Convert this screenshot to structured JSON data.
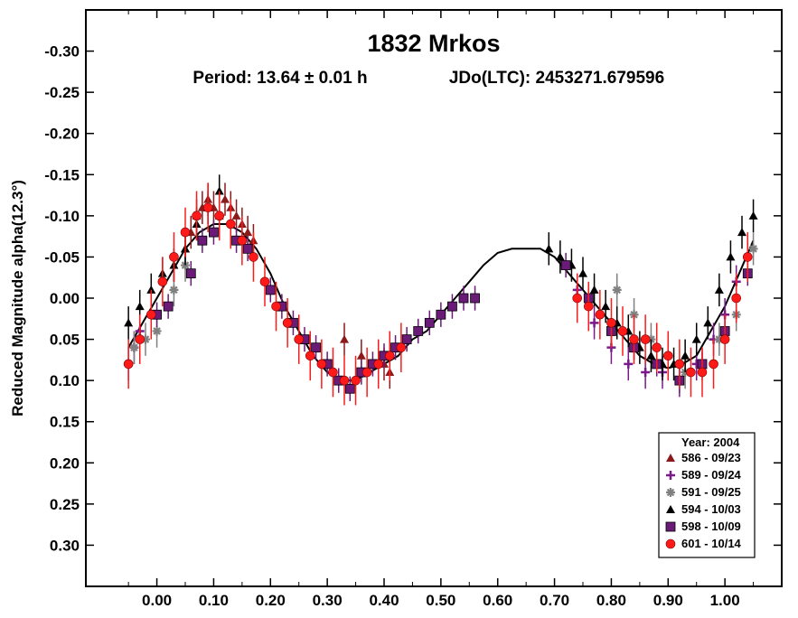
{
  "chart_data": {
    "type": "scatter",
    "title": "1832 Mrkos",
    "subtitle_period": "Period: 13.64 ± 0.01 h",
    "subtitle_jdo": "JDo(LTC): 2453271.679596",
    "ylabel": "Reduced Magnitude alpha(12.3°)",
    "xlabel": "",
    "xlim": [
      -0.125,
      1.1
    ],
    "ylim": [
      0.35,
      -0.35
    ],
    "y_inverted": true,
    "x_ticks": [
      "0.00",
      "0.10",
      "0.20",
      "0.30",
      "0.40",
      "0.50",
      "0.60",
      "0.70",
      "0.80",
      "0.90",
      "1.00"
    ],
    "x_tick_values": [
      0.0,
      0.1,
      0.2,
      0.3,
      0.4,
      0.5,
      0.6,
      0.7,
      0.8,
      0.9,
      1.0
    ],
    "y_ticks": [
      "-0.30",
      "-0.25",
      "-0.20",
      "-0.15",
      "-0.10",
      "-0.05",
      "0.00",
      "0.05",
      "0.10",
      "0.15",
      "0.20",
      "0.25",
      "0.30"
    ],
    "y_tick_values": [
      -0.3,
      -0.25,
      -0.2,
      -0.15,
      -0.1,
      -0.05,
      0.0,
      0.05,
      0.1,
      0.15,
      0.2,
      0.25,
      0.3
    ],
    "grid": false,
    "legend_position": "bottom-right",
    "legend_title": "Year: 2004",
    "series": [
      {
        "name": "586 - 09/23",
        "marker": "triangle",
        "color": "#8b1a1a",
        "error": 0.02,
        "x": [
          0.05,
          0.06,
          0.07,
          0.08,
          0.09,
          0.1,
          0.11,
          0.12,
          0.13,
          0.14,
          0.15,
          0.16,
          0.17,
          0.33,
          0.36,
          0.4,
          0.41
        ],
        "y": [
          -0.06,
          -0.08,
          -0.1,
          -0.11,
          -0.12,
          -0.11,
          -0.1,
          -0.12,
          -0.11,
          -0.1,
          -0.09,
          -0.08,
          -0.07,
          0.05,
          0.07,
          0.08,
          0.09
        ]
      },
      {
        "name": "589 - 09/24",
        "marker": "plus",
        "color": "#7a1a8a",
        "error": 0.02,
        "x": [
          -0.05,
          -0.04,
          -0.03,
          0.74,
          0.77,
          0.8,
          0.83,
          0.86,
          0.89,
          0.92,
          0.95,
          0.98,
          1.0,
          1.02,
          1.04
        ],
        "y": [
          0.08,
          0.06,
          0.04,
          -0.01,
          0.03,
          0.06,
          0.08,
          0.09,
          0.09,
          0.1,
          0.08,
          0.05,
          0.02,
          -0.02,
          -0.05
        ]
      },
      {
        "name": "591 - 09/25",
        "marker": "asterisk",
        "color": "#808080",
        "error": 0.02,
        "x": [
          -0.04,
          -0.02,
          0.0,
          0.03,
          0.05,
          0.81,
          0.84,
          0.87,
          0.9,
          0.93,
          0.96,
          0.99,
          1.02,
          1.05
        ],
        "y": [
          0.06,
          0.05,
          0.04,
          -0.01,
          -0.04,
          -0.01,
          0.02,
          0.05,
          0.07,
          0.09,
          0.08,
          0.05,
          0.02,
          -0.06
        ]
      },
      {
        "name": "594 - 10/03",
        "marker": "triangle",
        "color": "#000000",
        "error": 0.02,
        "x": [
          -0.05,
          -0.03,
          -0.01,
          0.01,
          0.03,
          0.05,
          0.07,
          0.09,
          0.11,
          0.69,
          0.71,
          0.73,
          0.75,
          0.77,
          0.79,
          0.81,
          0.83,
          0.85,
          0.87,
          0.89,
          0.91,
          0.93,
          0.95,
          0.97,
          0.99,
          1.01,
          1.03,
          1.05
        ],
        "y": [
          0.03,
          0.01,
          -0.01,
          -0.03,
          -0.04,
          -0.06,
          -0.09,
          -0.11,
          -0.13,
          -0.06,
          -0.05,
          -0.04,
          -0.03,
          -0.01,
          0.01,
          0.03,
          0.04,
          0.06,
          0.07,
          0.08,
          0.08,
          0.07,
          0.05,
          0.03,
          -0.01,
          -0.05,
          -0.08,
          -0.1
        ]
      },
      {
        "name": "598 - 10/09",
        "marker": "square",
        "color": "#6a1b78",
        "error": 0.015,
        "x": [
          0.0,
          0.02,
          0.06,
          0.08,
          0.1,
          0.14,
          0.16,
          0.2,
          0.22,
          0.24,
          0.26,
          0.28,
          0.3,
          0.32,
          0.34,
          0.36,
          0.38,
          0.4,
          0.42,
          0.44,
          0.46,
          0.48,
          0.5,
          0.52,
          0.54,
          0.56,
          0.72,
          0.76,
          0.8,
          0.84,
          0.88,
          0.92,
          0.96,
          1.0,
          1.04
        ],
        "y": [
          0.02,
          0.01,
          -0.03,
          -0.07,
          -0.08,
          -0.07,
          -0.06,
          -0.01,
          0.01,
          0.03,
          0.05,
          0.06,
          0.08,
          0.1,
          0.11,
          0.09,
          0.08,
          0.07,
          0.06,
          0.05,
          0.04,
          0.03,
          0.02,
          0.01,
          0.0,
          0.0,
          -0.04,
          0.0,
          0.04,
          0.06,
          0.08,
          0.1,
          0.08,
          0.04,
          -0.03
        ]
      },
      {
        "name": "601 - 10/14",
        "marker": "circle",
        "color": "#ff1a1a",
        "error": 0.03,
        "x": [
          -0.05,
          -0.03,
          -0.01,
          0.01,
          0.03,
          0.05,
          0.07,
          0.09,
          0.11,
          0.13,
          0.15,
          0.17,
          0.19,
          0.21,
          0.23,
          0.25,
          0.27,
          0.29,
          0.31,
          0.33,
          0.35,
          0.37,
          0.39,
          0.41,
          0.43,
          0.74,
          0.76,
          0.78,
          0.8,
          0.82,
          0.84,
          0.86,
          0.88,
          0.9,
          0.92,
          0.94,
          0.96,
          0.98,
          1.0,
          1.02,
          1.04
        ],
        "y": [
          0.08,
          0.05,
          0.02,
          -0.02,
          -0.05,
          -0.08,
          -0.1,
          -0.11,
          -0.1,
          -0.09,
          -0.07,
          -0.05,
          -0.02,
          0.01,
          0.03,
          0.05,
          0.07,
          0.08,
          0.09,
          0.1,
          0.1,
          0.09,
          0.08,
          0.07,
          0.06,
          0.0,
          0.01,
          0.02,
          0.03,
          0.04,
          0.05,
          0.05,
          0.06,
          0.07,
          0.08,
          0.09,
          0.09,
          0.08,
          0.05,
          0.0,
          -0.05
        ]
      }
    ],
    "fit_curve": {
      "color": "#000000",
      "x": [
        -0.05,
        -0.025,
        0.0,
        0.025,
        0.05,
        0.075,
        0.1,
        0.125,
        0.15,
        0.175,
        0.2,
        0.225,
        0.25,
        0.275,
        0.3,
        0.325,
        0.35,
        0.375,
        0.4,
        0.425,
        0.45,
        0.475,
        0.5,
        0.525,
        0.55,
        0.575,
        0.6,
        0.625,
        0.65,
        0.675,
        0.7,
        0.725,
        0.75,
        0.775,
        0.8,
        0.825,
        0.85,
        0.875,
        0.9,
        0.925,
        0.95,
        0.975,
        1.0,
        1.025,
        1.05
      ],
      "y": [
        0.06,
        0.03,
        0.0,
        -0.03,
        -0.06,
        -0.08,
        -0.09,
        -0.09,
        -0.08,
        -0.06,
        -0.03,
        0.01,
        0.04,
        0.07,
        0.09,
        0.1,
        0.1,
        0.09,
        0.08,
        0.07,
        0.05,
        0.04,
        0.02,
        0.0,
        -0.02,
        -0.04,
        -0.055,
        -0.06,
        -0.06,
        -0.06,
        -0.05,
        -0.03,
        -0.01,
        0.01,
        0.03,
        0.05,
        0.07,
        0.08,
        0.085,
        0.08,
        0.07,
        0.04,
        0.01,
        -0.03,
        -0.07
      ]
    }
  }
}
